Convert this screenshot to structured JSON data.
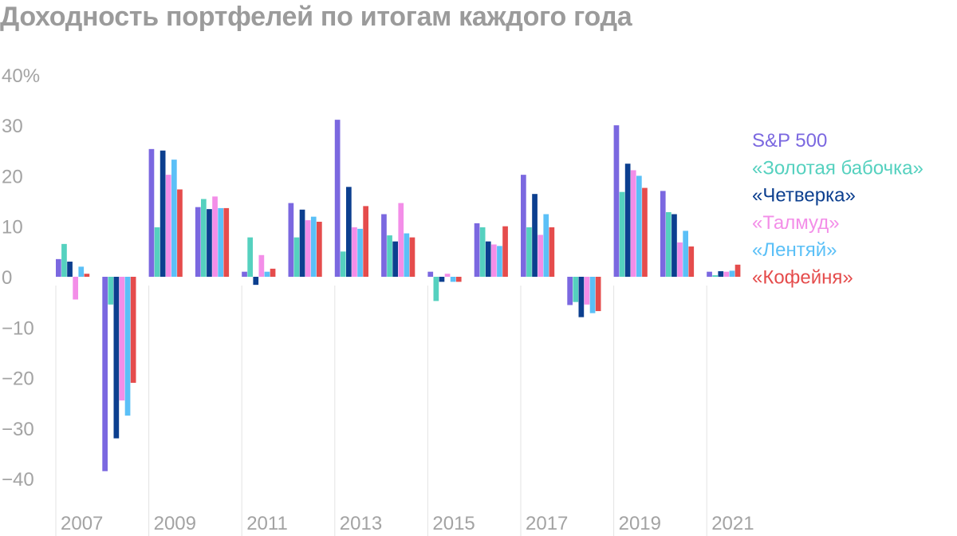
{
  "title": "Доходность портфелей по итогам каждого года",
  "chart_data": {
    "type": "bar",
    "title": "Доходность портфелей по итогам каждого года",
    "x": [
      2007,
      2008,
      2009,
      2010,
      2011,
      2012,
      2013,
      2014,
      2015,
      2016,
      2017,
      2018,
      2019,
      2020,
      2021
    ],
    "x_tick_labels": [
      "2007",
      "2009",
      "2011",
      "2013",
      "2015",
      "2017",
      "2019",
      "2021"
    ],
    "y_ticks": [
      40,
      30,
      20,
      10,
      0,
      -10,
      -20,
      -30,
      -40
    ],
    "y_tick_labels": [
      "40%",
      "30",
      "20",
      "10",
      "0",
      "−10",
      "−20",
      "−30",
      "−40"
    ],
    "ylim": [
      -45,
      42
    ],
    "grid": false,
    "legend_position": "right",
    "series": [
      {
        "name": "S&P 500",
        "color": "#7b68e0",
        "values": [
          3.5,
          -38.5,
          25.3,
          13.8,
          1.0,
          14.6,
          31.1,
          12.4,
          1.0,
          10.6,
          20.2,
          -5.6,
          30.0,
          17.0,
          1.0
        ]
      },
      {
        "name": "«Золотая бабочка»",
        "color": "#55d1bf",
        "values": [
          6.5,
          -5.5,
          9.8,
          15.4,
          7.8,
          7.8,
          5.0,
          8.2,
          -4.8,
          9.8,
          9.8,
          -5.0,
          16.8,
          12.8,
          0.3
        ]
      },
      {
        "name": "«Четверка»",
        "color": "#0c3f8f",
        "values": [
          3.0,
          -32.0,
          25.0,
          13.4,
          -1.6,
          13.3,
          17.8,
          7.0,
          -1.0,
          7.0,
          16.4,
          -8.0,
          22.4,
          12.4,
          1.1
        ]
      },
      {
        "name": "«Талмуд»",
        "color": "#f38ee8",
        "values": [
          -4.5,
          -24.5,
          20.2,
          15.9,
          4.3,
          11.2,
          9.8,
          14.6,
          0.6,
          6.4,
          8.3,
          -5.5,
          21.1,
          6.8,
          1.0
        ]
      },
      {
        "name": "«Лентяй»",
        "color": "#5bc0f7",
        "values": [
          2.0,
          -27.5,
          23.2,
          13.6,
          1.0,
          11.9,
          9.5,
          8.6,
          -1.0,
          6.1,
          12.4,
          -7.2,
          20.0,
          9.1,
          1.2
        ]
      },
      {
        "name": "«Кофейня»",
        "color": "#e54c4c",
        "values": [
          0.6,
          -21.0,
          17.3,
          13.6,
          1.6,
          10.9,
          14.0,
          7.8,
          -1.0,
          10.0,
          9.8,
          -6.8,
          17.6,
          6.0,
          2.4
        ]
      }
    ]
  }
}
